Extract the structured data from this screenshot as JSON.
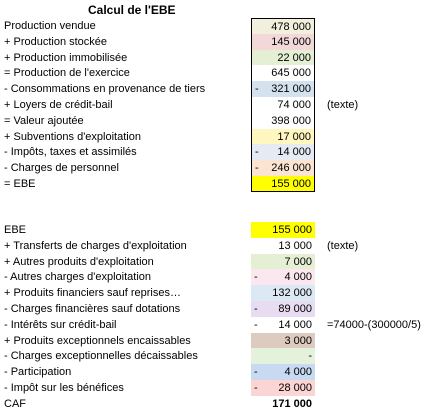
{
  "title": "Calcul de l'EBE",
  "section1": [
    {
      "label": "Production vendue",
      "sign": "",
      "value": "478 000",
      "color": "#f2f0dc",
      "note": ""
    },
    {
      "label": "+ Production stockée",
      "sign": "",
      "value": "145 000",
      "color": "#f2d8d8",
      "note": ""
    },
    {
      "label": "+ Production immobilisée",
      "sign": "",
      "value": "22 000",
      "color": "#e4efd4",
      "note": ""
    },
    {
      "label": "= Production de l'exercice",
      "sign": "",
      "value": "645 000",
      "color": "#ffffff",
      "note": ""
    },
    {
      "label": "- Consommations en provenance de tiers",
      "sign": "-",
      "value": "321 000",
      "color": "#d4e2f0",
      "note": ""
    },
    {
      "label": "+ Loyers de crédit-bail",
      "sign": "",
      "value": "74 000",
      "color": "#ffffff",
      "note": "(texte)"
    },
    {
      "label": "= Valeur ajoutée",
      "sign": "",
      "value": "398 000",
      "color": "#ffffff",
      "note": ""
    },
    {
      "label": "+ Subventions d'exploitation",
      "sign": "",
      "value": "17 000",
      "color": "#fff6c0",
      "note": ""
    },
    {
      "label": "- Impôts, taxes et assimilés",
      "sign": "-",
      "value": "14 000",
      "color": "#e6eaf2",
      "note": ""
    },
    {
      "label": "- Charges de personnel",
      "sign": "-",
      "value": "246 000",
      "color": "#fbe4d2",
      "note": ""
    },
    {
      "label": "= EBE",
      "sign": "",
      "value": "155 000",
      "color": "#ffff00",
      "note": ""
    }
  ],
  "section2": [
    {
      "label": "EBE",
      "sign": "",
      "value": "155 000",
      "color": "#ffff00",
      "note": "",
      "bold": false
    },
    {
      "label": "+ Transferts de charges d'exploitation",
      "sign": "",
      "value": "13 000",
      "color": "#ffffff",
      "note": "(texte)",
      "bold": false
    },
    {
      "label": "+ Autres produits d'exploitation",
      "sign": "",
      "value": "7 000",
      "color": "#e4efd4",
      "note": "",
      "bold": false
    },
    {
      "label": "- Autres charges d'exploitation",
      "sign": "-",
      "value": "4 000",
      "color": "#fbe8ee",
      "note": "",
      "bold": false
    },
    {
      "label": "+ Produits financiers sauf reprises…",
      "sign": "",
      "value": "132 000",
      "color": "#dce8f4",
      "note": "",
      "bold": false
    },
    {
      "label": "- Charges financières sauf dotations",
      "sign": "-",
      "value": "89 000",
      "color": "#e8dcf2",
      "note": "",
      "bold": false
    },
    {
      "label": "- Intérêts sur crédit-bail",
      "sign": "-",
      "value": "14 000",
      "color": "#ffffff",
      "note": "=74000-(300000/5)",
      "bold": false
    },
    {
      "label": "+ Produits exceptionnels encaissables",
      "sign": "",
      "value": "3 000",
      "color": "#ddcbc0",
      "note": "",
      "bold": false
    },
    {
      "label": "- Charges exceptionnelles décaissables",
      "sign": "",
      "value": "-",
      "color": "#e4f2dc",
      "note": "",
      "bold": false
    },
    {
      "label": "- Participation",
      "sign": "-",
      "value": "4 000",
      "color": "#c8daf2",
      "note": "",
      "bold": false
    },
    {
      "label": "- Impôt sur les bénéfices",
      "sign": "-",
      "value": "28 000",
      "color": "#fbd4d4",
      "note": "",
      "bold": false
    },
    {
      "label": "CAF",
      "sign": "",
      "value": "171 000",
      "color": "#ffffff",
      "note": "",
      "bold": true
    }
  ]
}
